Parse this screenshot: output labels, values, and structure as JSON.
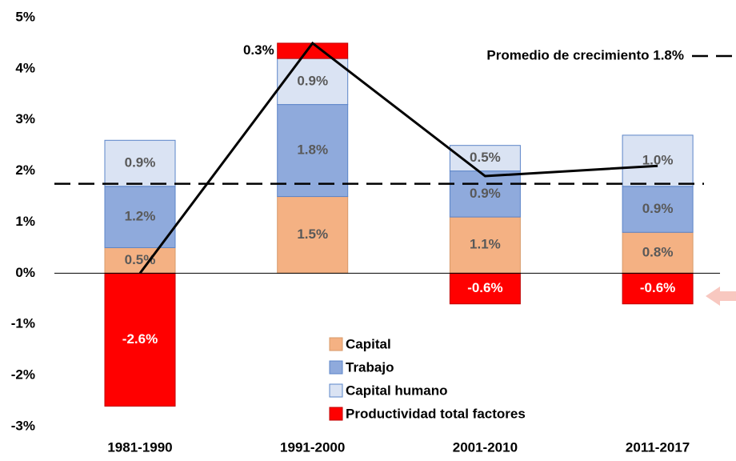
{
  "chart_data": {
    "type": "stacked-bar-line",
    "categories": [
      "1981-1990",
      "1991-2000",
      "2001-2010",
      "2011-2017"
    ],
    "series": [
      {
        "name": "Capital",
        "color": "#f4b183",
        "values": [
          0.5,
          1.5,
          1.1,
          0.8
        ],
        "value_labels": [
          "0.5%",
          "1.5%",
          "1.1%",
          "0.8%"
        ]
      },
      {
        "name": "Trabajo",
        "color": "#8faadc",
        "values": [
          1.2,
          1.8,
          0.9,
          0.9
        ],
        "value_labels": [
          "1.2%",
          "1.8%",
          "0.9%",
          "0.9%"
        ]
      },
      {
        "name": "Capital humano",
        "color": "#dae3f3",
        "values": [
          0.9,
          0.9,
          0.5,
          1.0
        ],
        "value_labels": [
          "0.9%",
          "0.9%",
          "0.5%",
          "1.0%"
        ]
      },
      {
        "name": "Productividad total factores",
        "color": "#ff0000",
        "values": [
          -2.6,
          0.3,
          -0.6,
          -0.6
        ],
        "value_labels": [
          "-2.6%",
          "0.3%",
          "-0.6%",
          "-0.6%"
        ]
      }
    ],
    "line": {
      "color": "#000000",
      "values": [
        0,
        4.5,
        1.9,
        2.1
      ]
    },
    "average_line": {
      "value": 1.75,
      "label": "Promedio de crecimiento 1.8%"
    },
    "ylim": [
      -3,
      5
    ],
    "yticks": [
      {
        "value": -3,
        "label": "-3%"
      },
      {
        "value": -2,
        "label": "-2%"
      },
      {
        "value": -1,
        "label": "-1%"
      },
      {
        "value": 0,
        "label": "0%"
      },
      {
        "value": 1,
        "label": "1%"
      },
      {
        "value": 2,
        "label": "2%"
      },
      {
        "value": 3,
        "label": "3%"
      },
      {
        "value": 4,
        "label": "4%"
      },
      {
        "value": 5,
        "label": "5%"
      }
    ]
  }
}
